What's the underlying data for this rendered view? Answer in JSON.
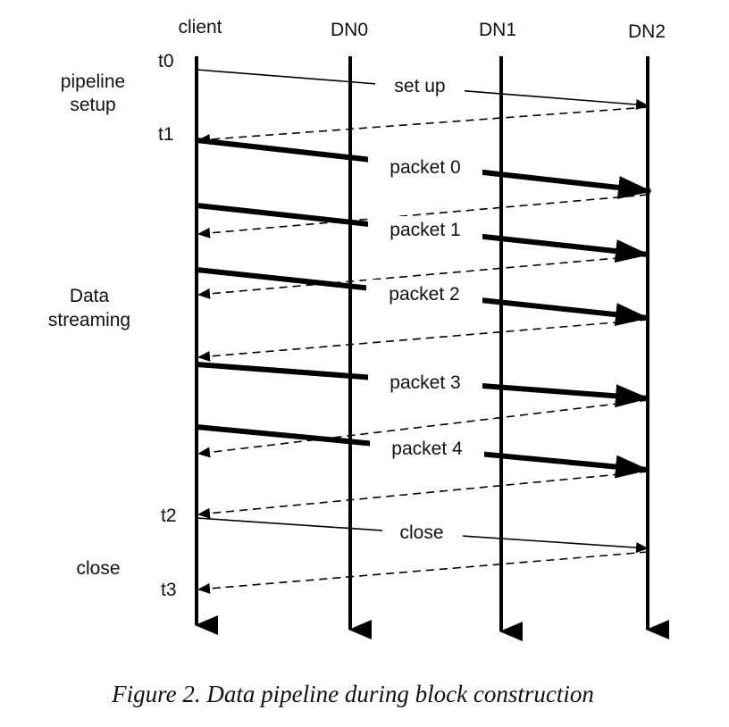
{
  "lifelines": [
    {
      "id": "client",
      "label": "client"
    },
    {
      "id": "dn0",
      "label": "DN0"
    },
    {
      "id": "dn1",
      "label": "DN1"
    },
    {
      "id": "dn2",
      "label": "DN2"
    }
  ],
  "time_labels": [
    "t0",
    "t1",
    "t2",
    "t3"
  ],
  "phase_labels": {
    "pipeline_setup": [
      "pipeline",
      "setup"
    ],
    "data_streaming": [
      "Data",
      "streaming"
    ],
    "close": [
      "close"
    ]
  },
  "messages": {
    "setup": "set up",
    "packets": [
      "packet 0",
      "packet 1",
      "packet 2",
      "packet 3",
      "packet 4"
    ],
    "close": "close"
  },
  "caption": "Figure 2. Data pipeline during block construction"
}
